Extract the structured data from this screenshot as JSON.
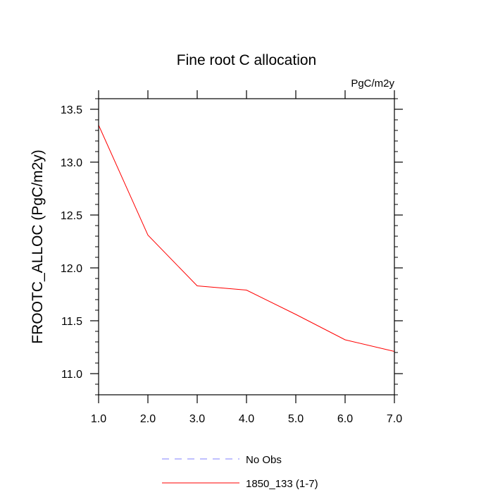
{
  "chart_data": {
    "type": "line",
    "title": "Fine root C allocation",
    "units_label": "PgC/m2y",
    "xlabel": "",
    "ylabel": "FROOTC_ALLOC  (PgC/m2y)",
    "xlim": [
      1.0,
      7.0
    ],
    "ylim": [
      10.8,
      13.6
    ],
    "x_ticks": [
      1.0,
      2.0,
      3.0,
      4.0,
      5.0,
      6.0,
      7.0
    ],
    "x_tick_labels": [
      "1.0",
      "2.0",
      "3.0",
      "4.0",
      "5.0",
      "6.0",
      "7.0"
    ],
    "y_ticks": [
      11.0,
      11.5,
      12.0,
      12.5,
      13.0,
      13.5
    ],
    "y_tick_labels": [
      "11.0",
      "11.5",
      "12.0",
      "12.5",
      "13.0",
      "13.5"
    ],
    "grid": false,
    "legend_position": "bottom",
    "series": [
      {
        "name": "No Obs",
        "color": "#8080ff",
        "dash": "dashed",
        "x": [],
        "values": []
      },
      {
        "name": "1850_133 (1-7)",
        "color": "#ff0000",
        "dash": "solid",
        "x": [
          1.0,
          2.0,
          3.0,
          4.0,
          5.0,
          6.0,
          7.0
        ],
        "values": [
          13.35,
          12.31,
          11.83,
          11.79,
          11.56,
          11.32,
          11.21
        ]
      }
    ]
  }
}
